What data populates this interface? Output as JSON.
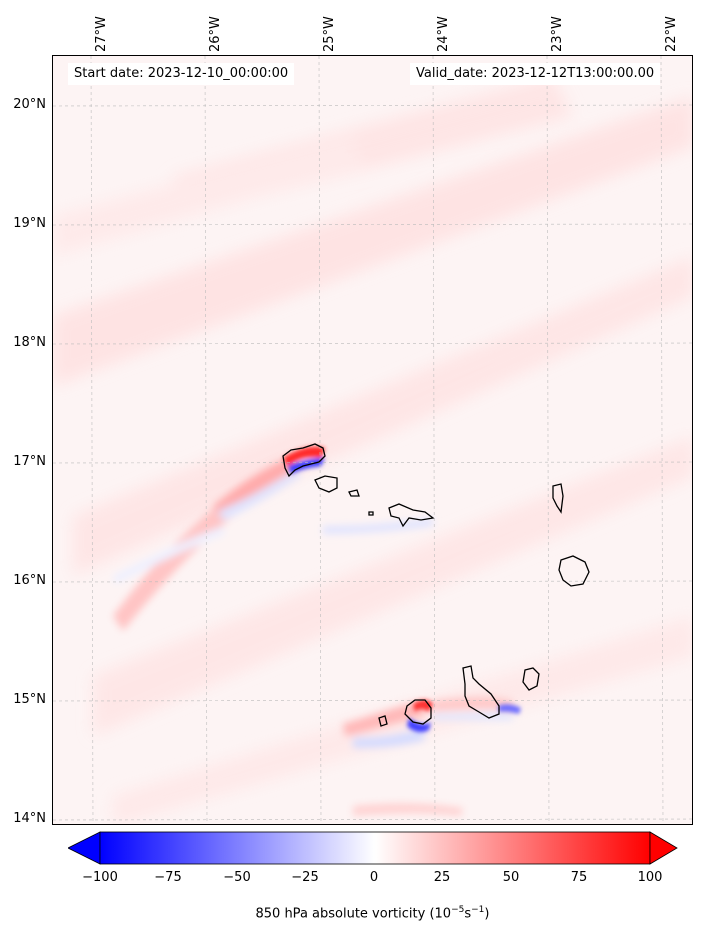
{
  "header": {
    "start_date": "Start date: 2023-12-10_00:00:00",
    "valid_date": "Valid_date: 2023-12-12T13:00:00.00"
  },
  "axes": {
    "lon_labels": [
      "27°W",
      "26°W",
      "25°W",
      "24°W",
      "23°W",
      "22°W"
    ],
    "lat_labels": [
      "20°N",
      "19°N",
      "18°N",
      "17°N",
      "16°N",
      "15°N",
      "14°N"
    ]
  },
  "colorbar": {
    "ticks": [
      "−100",
      "−75",
      "−50",
      "−25",
      "0",
      "25",
      "50",
      "75",
      "100"
    ],
    "label_prefix": "850 hPa absolute vorticity (10",
    "label_exp1": "−5",
    "label_mid": "s",
    "label_exp2": "−1",
    "label_suffix": ")",
    "range": [
      -100,
      100
    ],
    "extend": "both",
    "colors": {
      "low": "#0000ff",
      "mid": "#ffffff",
      "high": "#ff0000"
    }
  },
  "map": {
    "region": "Cape Verde islands",
    "lon_range": [
      -27.35,
      -21.8
    ],
    "lat_range": [
      13.95,
      20.45
    ],
    "grid": true,
    "coastlines": true
  }
}
